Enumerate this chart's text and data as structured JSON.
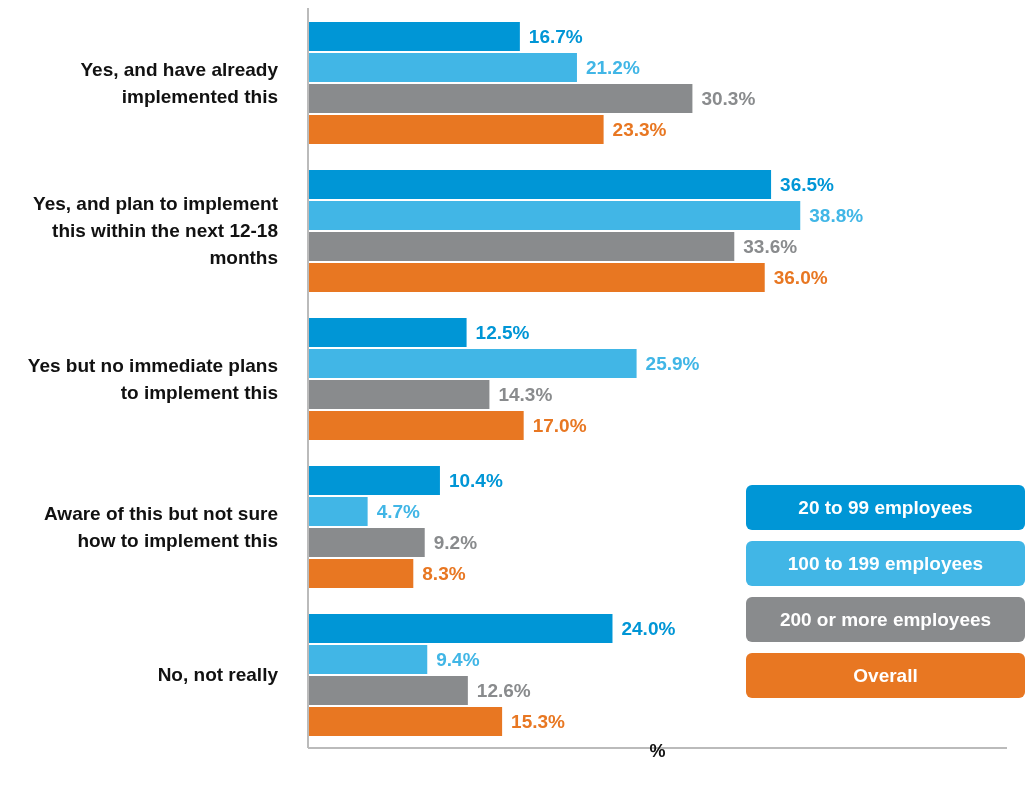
{
  "chart_data": {
    "type": "bar",
    "orientation": "horizontal",
    "xlabel": "%",
    "categories": [
      "Yes, and have already implemented this",
      "Yes, and plan to implement this within the next 12-18 months",
      "Yes but no immediate plans to implement this",
      "Aware of this but not sure how to implement this",
      "No, not really"
    ],
    "series": [
      {
        "name": "20 to 99 employees",
        "color": "#0096d6",
        "values": [
          16.7,
          36.5,
          12.5,
          10.4,
          24.0
        ],
        "value_labels": [
          "16.7%",
          "36.5%",
          "12.5%",
          "10.4%",
          "24.0%"
        ]
      },
      {
        "name": "100 to 199 employees",
        "color": "#41b6e6",
        "values": [
          21.2,
          38.8,
          25.9,
          4.7,
          9.4
        ],
        "value_labels": [
          "21.2%",
          "38.8%",
          "25.9%",
          "4.7%",
          "9.4%"
        ]
      },
      {
        "name": "200 or more employees",
        "color": "#898b8d",
        "values": [
          30.3,
          33.6,
          14.3,
          9.2,
          12.6
        ],
        "value_labels": [
          "30.3%",
          "33.6%",
          "14.3%",
          "9.2%",
          "12.6%"
        ]
      },
      {
        "name": "Overall",
        "color": "#e87722",
        "values": [
          23.3,
          36.0,
          17.0,
          8.3,
          15.3
        ],
        "value_labels": [
          "23.3%",
          "36.0%",
          "17.0%",
          "8.3%",
          "15.3%"
        ]
      }
    ],
    "legend": "bottom right",
    "grid": false,
    "tick_labels": "y"
  }
}
